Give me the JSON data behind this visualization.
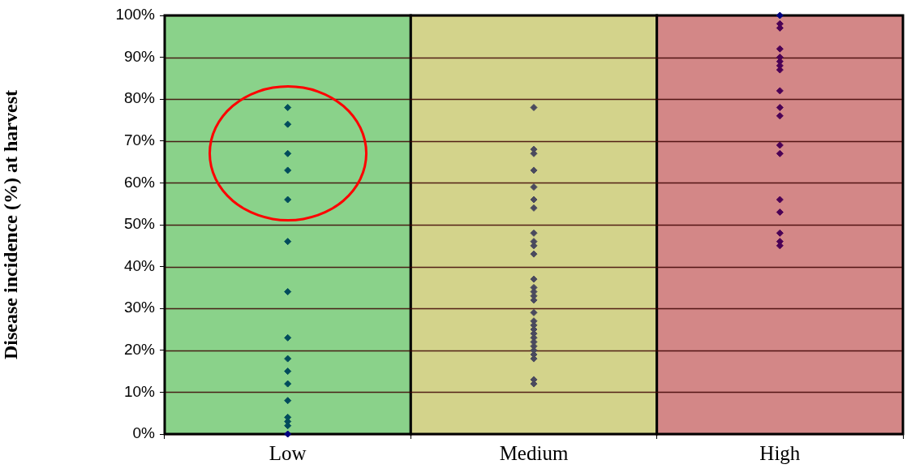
{
  "chart_data": {
    "type": "scatter",
    "ylabel": "Disease incidence (%) at harvest",
    "categories": [
      "Low",
      "Medium",
      "High"
    ],
    "ylim": [
      0,
      100
    ],
    "yticks": [
      {
        "value": 0,
        "label": "0%"
      },
      {
        "value": 10,
        "label": "10%"
      },
      {
        "value": 20,
        "label": "20%"
      },
      {
        "value": 30,
        "label": "30%"
      },
      {
        "value": 40,
        "label": "40%"
      },
      {
        "value": 50,
        "label": "50%"
      },
      {
        "value": 60,
        "label": "60%"
      },
      {
        "value": 70,
        "label": "70%"
      },
      {
        "value": 80,
        "label": "80%"
      },
      {
        "value": 90,
        "label": "90%"
      },
      {
        "value": 100,
        "label": "100%"
      }
    ],
    "grid": "y",
    "legend": false,
    "marker": "diamond",
    "bands": [
      {
        "axis": "x",
        "from": "Low",
        "to": "Low",
        "color": "#8ad28a"
      },
      {
        "axis": "x",
        "from": "Medium",
        "to": "Medium",
        "color": "#d3d38b"
      },
      {
        "axis": "x",
        "from": "High",
        "to": "High",
        "color": "#d38787"
      }
    ],
    "series": [
      {
        "color": "#004c5c",
        "x": [
          "Low",
          "Low",
          "Low",
          "Low",
          "Low",
          "Low",
          "Low",
          "Low",
          "Low",
          "Low",
          "Low",
          "Low",
          "Low",
          "Low",
          "Low"
        ],
        "values": [
          78,
          74,
          67,
          63,
          56,
          46,
          34,
          23,
          18,
          15,
          12,
          8,
          3,
          4,
          2
        ]
      },
      {
        "color": "#4a4a5e",
        "x": [
          "Medium",
          "Medium",
          "Medium",
          "Medium",
          "Medium",
          "Medium",
          "Medium",
          "Medium",
          "Medium",
          "Medium",
          "Medium",
          "Medium",
          "Medium",
          "Medium",
          "Medium",
          "Medium",
          "Medium",
          "Medium",
          "Medium",
          "Medium",
          "Medium",
          "Medium",
          "Medium",
          "Medium",
          "Medium",
          "Medium",
          "Medium",
          "Medium",
          "Medium"
        ],
        "values": [
          68,
          78,
          67,
          63,
          59,
          56,
          54,
          48,
          45,
          46,
          43,
          37,
          35,
          34,
          32,
          33,
          29,
          27,
          26,
          25,
          24,
          23,
          22,
          21,
          20,
          19,
          18,
          13,
          12
        ]
      },
      {
        "color": "#4b0055",
        "x": [
          "High",
          "High",
          "High",
          "High",
          "High",
          "High",
          "High",
          "High",
          "High",
          "High",
          "High",
          "High",
          "High",
          "High",
          "High",
          "High",
          "High"
        ],
        "values": [
          89,
          98,
          97,
          92,
          90,
          88,
          87,
          82,
          78,
          76,
          69,
          67,
          56,
          53,
          48,
          46,
          45
        ]
      },
      {
        "color": "#000080",
        "x": [
          "Low",
          "High"
        ],
        "values": [
          0,
          100
        ]
      }
    ]
  }
}
